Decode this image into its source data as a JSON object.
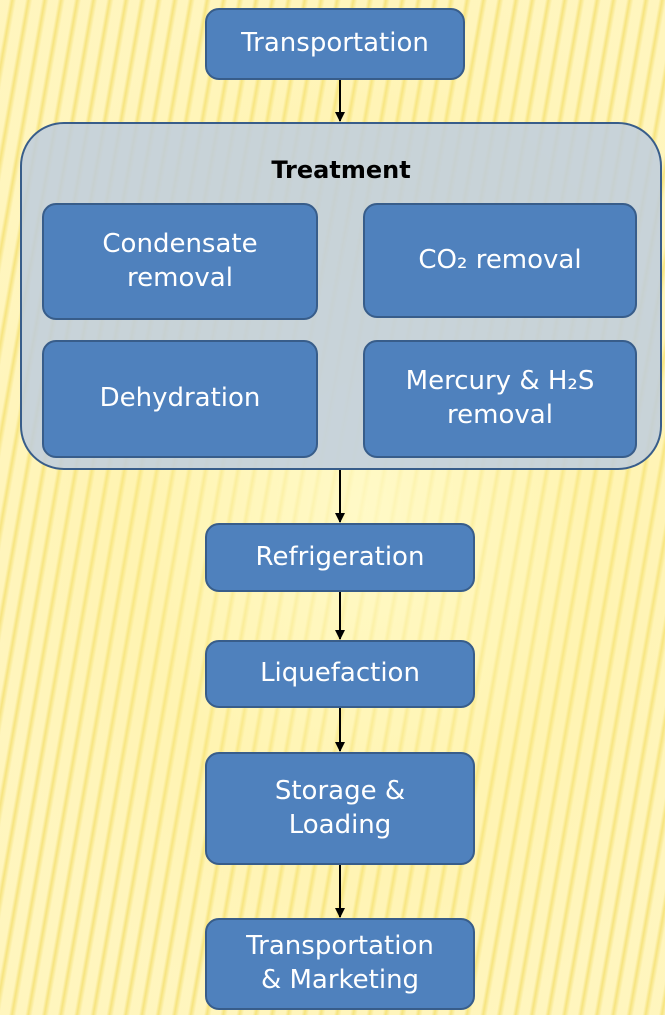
{
  "container": {
    "title": "Treatment"
  },
  "nodes": [
    {
      "lines": [
        "Transportation"
      ]
    },
    {
      "lines": [
        "Condensate",
        "removal"
      ]
    },
    {
      "lines": [
        "CO₂ removal"
      ]
    },
    {
      "lines": [
        "Dehydration"
      ]
    },
    {
      "lines": [
        "Mercury & H₂S",
        "removal"
      ]
    },
    {
      "lines": [
        "Refrigeration"
      ]
    },
    {
      "lines": [
        "Liquefaction"
      ]
    },
    {
      "lines": [
        "Storage &",
        "Loading"
      ]
    },
    {
      "lines": [
        "Transportation",
        "& Marketing"
      ]
    }
  ]
}
